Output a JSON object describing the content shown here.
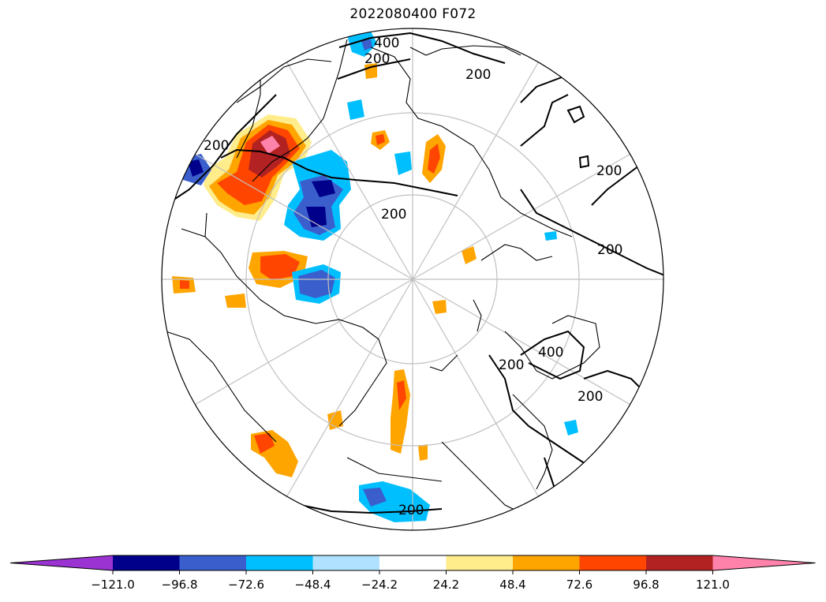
{
  "title": "2022080400 F072",
  "contour_labels": [
    "400",
    "200",
    "200",
    "200",
    "200",
    "200",
    "200",
    "400",
    "200",
    "200",
    "200"
  ],
  "colorbar": {
    "ticks": [
      "−121.0",
      "−96.8",
      "−72.6",
      "−48.4",
      "−24.2",
      "24.2",
      "48.4",
      "72.6",
      "96.8",
      "121.0"
    ],
    "colors": [
      "#9b32d2",
      "#00008b",
      "#3a5fcd",
      "#00bfff",
      "#b0e2ff",
      "#ffffff",
      "#ffec8b",
      "#ffa500",
      "#ff4500",
      "#b22222",
      "#ff82ab"
    ]
  },
  "colors": {
    "graticule": "#c0c0c0",
    "coastline": "#000000",
    "contour": "#000000"
  }
}
